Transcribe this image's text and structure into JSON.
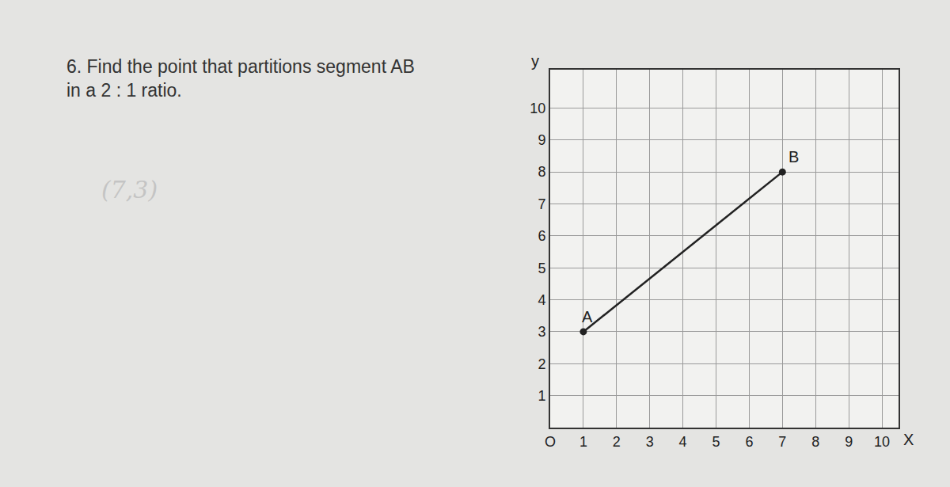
{
  "chart_data": {
    "type": "line",
    "title": "6. Find the point that partitions segment AB\nin a 2 : 1 ratio.",
    "x_label": "X",
    "y_label": "y",
    "x": [
      1,
      7
    ],
    "values": [
      3,
      8
    ],
    "point_labels": [
      "A",
      "B"
    ],
    "color": "#222222",
    "marker": "circle",
    "xlim": [
      0,
      10.5
    ],
    "ylim": [
      0,
      11.2
    ],
    "xticks": [
      {
        "value": 0,
        "label": "O"
      },
      1,
      2,
      3,
      4,
      5,
      6,
      7,
      8,
      9,
      10
    ],
    "yticks": [
      1,
      2,
      3,
      4,
      5,
      6,
      7,
      8,
      9,
      10
    ],
    "grid": true,
    "note": "(7,3)"
  }
}
